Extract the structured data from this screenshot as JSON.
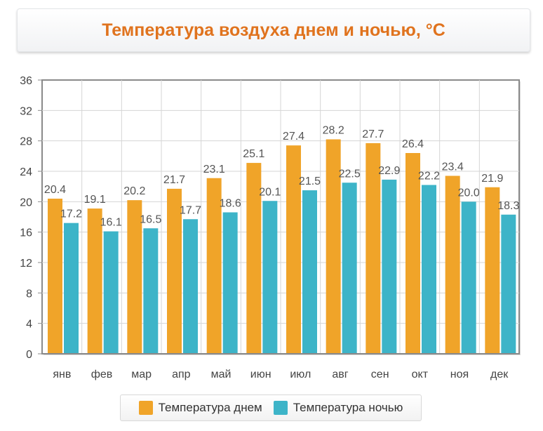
{
  "chart_data": {
    "type": "bar",
    "title": "Температура воздуха днем и ночью, °C",
    "categories": [
      "янв",
      "фев",
      "мар",
      "апр",
      "май",
      "июн",
      "июл",
      "авг",
      "сен",
      "окт",
      "ноя",
      "дек"
    ],
    "series": [
      {
        "name": "Температура днем",
        "color": "#f0a429",
        "values": [
          20.4,
          19.1,
          20.2,
          21.7,
          23.1,
          25.1,
          27.4,
          28.2,
          27.7,
          26.4,
          23.4,
          21.9
        ]
      },
      {
        "name": "Температура ночью",
        "color": "#3db4c8",
        "values": [
          17.2,
          16.1,
          16.5,
          17.7,
          18.6,
          20.1,
          21.5,
          22.5,
          22.9,
          22.2,
          20.0,
          18.3
        ]
      }
    ],
    "value_labels": [
      [
        "20.4",
        "19.1",
        "20.2",
        "21.7",
        "23.1",
        "25.1",
        "27.4",
        "28.2",
        "27.7",
        "26.4",
        "23.4",
        "21.9"
      ],
      [
        "17.2",
        "16.1",
        "16.5",
        "17.7",
        "18.6",
        "20.1",
        "21.5",
        "22.5",
        "22.9",
        "22.2",
        "20.0",
        "18.3"
      ]
    ],
    "ylim": [
      0,
      36
    ],
    "yticks": [
      0,
      4,
      8,
      12,
      16,
      20,
      24,
      28,
      32,
      36
    ],
    "xlabel": "",
    "ylabel": "",
    "grid": true,
    "legend": "bottom"
  }
}
